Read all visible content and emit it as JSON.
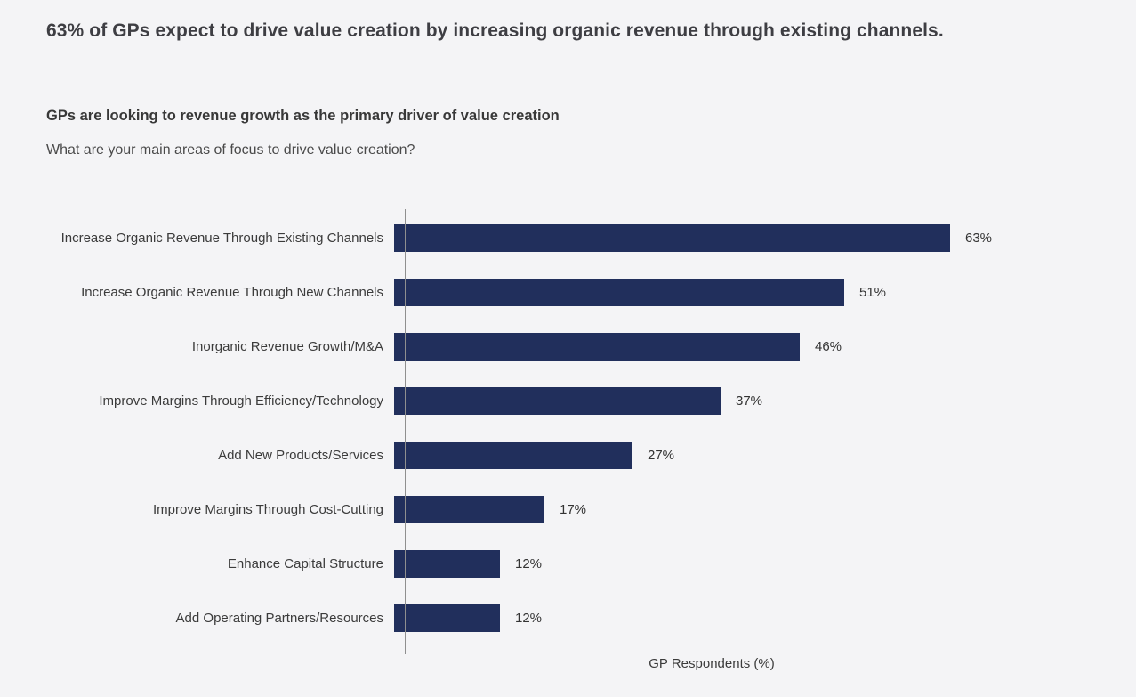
{
  "page": {
    "background": "#f4f4f6",
    "headline": "63% of GPs expect to drive value creation by increasing organic revenue through existing channels."
  },
  "chart": {
    "subtitle": "GPs are looking to revenue growth as the primary driver of value creation",
    "question": "What are your main areas of focus to drive value creation?",
    "xlabel": "GP Respondents (%)"
  },
  "chart_data": {
    "type": "bar",
    "orientation": "horizontal",
    "title": "GPs are looking to revenue growth as the primary driver of value creation",
    "subtitle_question": "What are your main areas of focus to drive value creation?",
    "categories": [
      "Increase Organic Revenue Through Existing Channels",
      "Increase Organic Revenue Through New Channels",
      "Inorganic Revenue Growth/M&A",
      "Improve Margins Through Efficiency/Technology",
      "Add New Products/Services",
      "Improve Margins Through Cost-Cutting",
      "Enhance Capital Structure",
      "Add Operating Partners/Resources"
    ],
    "values": [
      63,
      51,
      46,
      37,
      27,
      17,
      12,
      12
    ],
    "value_labels": [
      "63%",
      "51%",
      "46%",
      "37%",
      "27%",
      "17%",
      "12%",
      "12%"
    ],
    "xlabel": "GP Respondents (%)",
    "ylabel": "",
    "xlim": [
      0,
      70
    ],
    "bar_color": "#212f5c",
    "grid": false,
    "legend": false,
    "value_labels_position": "right-of-bar"
  }
}
